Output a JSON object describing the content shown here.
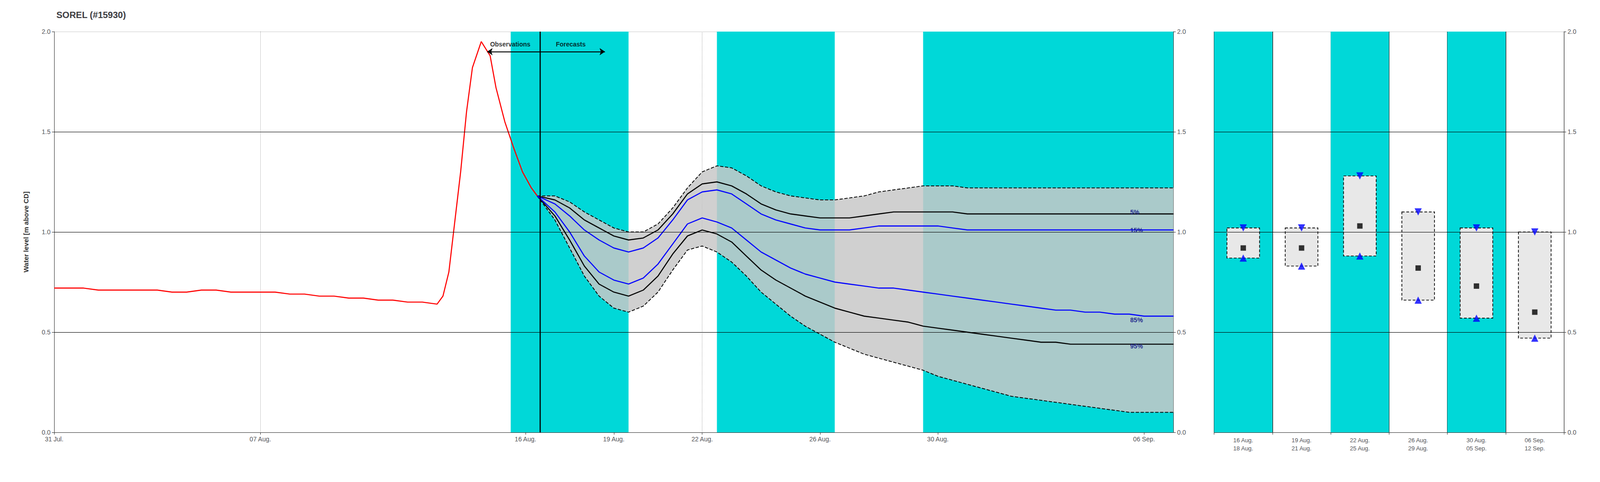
{
  "chart_data": [
    {
      "type": "line",
      "title": "SOREL (#15930)",
      "y_label": "Water level [m above CD]",
      "xlim": [
        0,
        38
      ],
      "xticks": [
        {
          "value": 0,
          "label": "31 Jul."
        },
        {
          "value": 7,
          "label": "07 Aug."
        },
        {
          "value": 16,
          "label": "16 Aug."
        },
        {
          "value": 19,
          "label": "19 Aug."
        },
        {
          "value": 22,
          "label": "22 Aug."
        },
        {
          "value": 26,
          "label": "26 Aug."
        },
        {
          "value": 30,
          "label": "30 Aug."
        },
        {
          "value": 37,
          "label": "06 Sep."
        }
      ],
      "ylim": [
        0.0,
        2.0
      ],
      "yticks": [
        {
          "value": 0,
          "label": "0.0"
        },
        0.5,
        {
          "value": 1,
          "label": "1.0"
        },
        1.5,
        {
          "value": 2,
          "label": "2.0"
        }
      ],
      "y2lim": [
        0.0,
        2.0
      ],
      "y2ticks": [
        {
          "value": 0,
          "label": "0.0"
        },
        0.5,
        {
          "value": 1,
          "label": "1.0"
        },
        1.5,
        {
          "value": 2,
          "label": "2.0"
        }
      ],
      "grid": true,
      "bands": {
        "color": "#00d8d8",
        "ranges": [
          [
            15.5,
            19.5
          ],
          [
            22.5,
            26.5
          ],
          [
            29.5,
            38.0
          ]
        ]
      },
      "hlines": [
        0.5,
        1.0,
        1.5
      ],
      "vlines": [
        16.5
      ],
      "arrows": [
        {
          "x": [
            14.7,
            18.7
          ],
          "y": [
            1.9,
            1.9
          ]
        }
      ],
      "annotations": [
        {
          "text": "5%",
          "x": 36.5,
          "y": 1.1,
          "color": "navy"
        },
        {
          "text": "15%",
          "x": 36.5,
          "y": 1.01,
          "color": "navy"
        },
        {
          "text": "85%",
          "x": 36.5,
          "y": 0.56,
          "color": "navy"
        },
        {
          "text": "95%",
          "x": 36.5,
          "y": 0.43,
          "color": "navy"
        },
        {
          "text": "Observations",
          "x": 16.2,
          "y": 1.9,
          "color": "black"
        },
        {
          "text": "Forecasts",
          "x": 17.0,
          "y": 1.9,
          "color": "black"
        }
      ],
      "series": [
        {
          "type": "band",
          "color": "#c8c8c8",
          "x": [
            16.4,
            17,
            17.5,
            18,
            18.5,
            19,
            19.5,
            20,
            20.5,
            21,
            21.5,
            22,
            22.5,
            23,
            23.5,
            24,
            24.5,
            25,
            25.5,
            26,
            26.5,
            27,
            27.5,
            28,
            28.5,
            29,
            29.5,
            30,
            30.5,
            31,
            31.5,
            32,
            32.5,
            33,
            33.5,
            34,
            34.5,
            35,
            35.5,
            36,
            36.5,
            37,
            37.5,
            38
          ],
          "lower": [
            1.18,
            1.06,
            0.92,
            0.78,
            0.68,
            0.62,
            0.6,
            0.63,
            0.7,
            0.81,
            0.91,
            0.93,
            0.9,
            0.85,
            0.78,
            0.7,
            0.64,
            0.58,
            0.53,
            0.49,
            0.45,
            0.42,
            0.39,
            0.37,
            0.35,
            0.33,
            0.31,
            0.28,
            0.26,
            0.24,
            0.22,
            0.2,
            0.18,
            0.17,
            0.16,
            0.15,
            0.14,
            0.13,
            0.12,
            0.11,
            0.1,
            0.1,
            0.1,
            0.1
          ],
          "upper": [
            1.18,
            1.18,
            1.15,
            1.1,
            1.06,
            1.02,
            1.0,
            1.0,
            1.04,
            1.12,
            1.22,
            1.3,
            1.33,
            1.32,
            1.28,
            1.23,
            1.2,
            1.18,
            1.17,
            1.16,
            1.16,
            1.17,
            1.18,
            1.2,
            1.21,
            1.22,
            1.23,
            1.23,
            1.23,
            1.22,
            1.22,
            1.22,
            1.22,
            1.22,
            1.22,
            1.22,
            1.22,
            1.22,
            1.22,
            1.22,
            1.22,
            1.22,
            1.22,
            1.22
          ]
        },
        {
          "type": "line",
          "color": "black",
          "line_style": "dashed",
          "x": [
            16.4,
            17,
            17.5,
            18,
            18.5,
            19,
            19.5,
            20,
            20.5,
            21,
            21.5,
            22,
            22.5,
            23,
            23.5,
            24,
            24.5,
            25,
            25.5,
            26,
            26.5,
            27,
            27.5,
            28,
            28.5,
            29,
            29.5,
            30,
            30.5,
            31,
            31.5,
            32,
            32.5,
            33,
            33.5,
            34,
            34.5,
            35,
            35.5,
            36,
            36.5,
            37,
            37.5,
            38
          ],
          "values": [
            1.18,
            1.18,
            1.15,
            1.1,
            1.06,
            1.02,
            1.0,
            1.0,
            1.04,
            1.12,
            1.22,
            1.3,
            1.33,
            1.32,
            1.28,
            1.23,
            1.2,
            1.18,
            1.17,
            1.16,
            1.16,
            1.17,
            1.18,
            1.2,
            1.21,
            1.22,
            1.23,
            1.23,
            1.23,
            1.22,
            1.22,
            1.22,
            1.22,
            1.22,
            1.22,
            1.22,
            1.22,
            1.22,
            1.22,
            1.22,
            1.22,
            1.22,
            1.22,
            1.22
          ]
        },
        {
          "type": "line",
          "color": "black",
          "line_style": "dashed",
          "x": [
            16.4,
            17,
            17.5,
            18,
            18.5,
            19,
            19.5,
            20,
            20.5,
            21,
            21.5,
            22,
            22.5,
            23,
            23.5,
            24,
            24.5,
            25,
            25.5,
            26,
            26.5,
            27,
            27.5,
            28,
            28.5,
            29,
            29.5,
            30,
            30.5,
            31,
            31.5,
            32,
            32.5,
            33,
            33.5,
            34,
            34.5,
            35,
            35.5,
            36,
            36.5,
            37,
            37.5,
            38
          ],
          "values": [
            1.18,
            1.06,
            0.92,
            0.78,
            0.68,
            0.62,
            0.6,
            0.63,
            0.7,
            0.81,
            0.91,
            0.93,
            0.9,
            0.85,
            0.78,
            0.7,
            0.64,
            0.58,
            0.53,
            0.49,
            0.45,
            0.42,
            0.39,
            0.37,
            0.35,
            0.33,
            0.31,
            0.28,
            0.26,
            0.24,
            0.22,
            0.2,
            0.18,
            0.17,
            0.16,
            0.15,
            0.14,
            0.13,
            0.12,
            0.11,
            0.1,
            0.1,
            0.1,
            0.1
          ]
        },
        {
          "type": "line",
          "color": "black",
          "line_style": "solid",
          "x": [
            16.4,
            17,
            17.5,
            18,
            18.5,
            19,
            19.5,
            20,
            20.5,
            21,
            21.5,
            22,
            22.5,
            23,
            23.5,
            24,
            24.5,
            25,
            25.5,
            26,
            26.5,
            27,
            27.5,
            28,
            28.5,
            29,
            29.5,
            30,
            30.5,
            31,
            31.5,
            32,
            32.5,
            33,
            33.5,
            34,
            34.5,
            35,
            35.5,
            36,
            36.5,
            37,
            37.5,
            38
          ],
          "values": [
            1.18,
            1.16,
            1.12,
            1.06,
            1.02,
            0.98,
            0.96,
            0.97,
            1.01,
            1.09,
            1.19,
            1.24,
            1.25,
            1.23,
            1.19,
            1.14,
            1.11,
            1.09,
            1.08,
            1.07,
            1.07,
            1.07,
            1.08,
            1.09,
            1.1,
            1.1,
            1.1,
            1.1,
            1.1,
            1.09,
            1.09,
            1.09,
            1.09,
            1.09,
            1.09,
            1.09,
            1.09,
            1.09,
            1.09,
            1.09,
            1.09,
            1.09,
            1.09,
            1.09
          ]
        },
        {
          "type": "line",
          "color": "black",
          "line_style": "solid",
          "x": [
            16.4,
            17,
            17.5,
            18,
            18.5,
            19,
            19.5,
            20,
            20.5,
            21,
            21.5,
            22,
            22.5,
            23,
            23.5,
            24,
            24.5,
            25,
            25.5,
            26,
            26.5,
            27,
            27.5,
            28,
            28.5,
            29,
            29.5,
            30,
            30.5,
            31,
            31.5,
            32,
            32.5,
            33,
            33.5,
            34,
            34.5,
            35,
            35.5,
            36,
            36.5,
            37,
            37.5,
            38
          ],
          "values": [
            1.18,
            1.08,
            0.96,
            0.83,
            0.74,
            0.7,
            0.68,
            0.71,
            0.78,
            0.89,
            0.98,
            1.01,
            0.99,
            0.95,
            0.88,
            0.81,
            0.76,
            0.72,
            0.68,
            0.65,
            0.62,
            0.6,
            0.58,
            0.57,
            0.56,
            0.55,
            0.53,
            0.52,
            0.51,
            0.5,
            0.49,
            0.48,
            0.47,
            0.46,
            0.45,
            0.45,
            0.44,
            0.44,
            0.44,
            0.44,
            0.44,
            0.44,
            0.44,
            0.44
          ]
        },
        {
          "type": "line",
          "color": "blue",
          "line_style": "solid",
          "x": [
            16.4,
            17,
            17.5,
            18,
            18.5,
            19,
            19.5,
            20,
            20.5,
            21,
            21.5,
            22,
            22.5,
            23,
            23.5,
            24,
            24.5,
            25,
            25.5,
            26,
            26.5,
            27,
            27.5,
            28,
            28.5,
            29,
            29.5,
            30,
            30.5,
            31,
            31.5,
            32,
            32.5,
            33,
            33.5,
            34,
            34.5,
            35,
            35.5,
            36,
            36.5,
            37,
            37.5,
            38
          ],
          "values": [
            1.18,
            1.14,
            1.08,
            1.01,
            0.96,
            0.92,
            0.9,
            0.92,
            0.97,
            1.06,
            1.16,
            1.2,
            1.21,
            1.19,
            1.14,
            1.09,
            1.06,
            1.04,
            1.02,
            1.01,
            1.01,
            1.01,
            1.02,
            1.03,
            1.03,
            1.03,
            1.03,
            1.03,
            1.02,
            1.01,
            1.01,
            1.01,
            1.01,
            1.01,
            1.01,
            1.01,
            1.01,
            1.01,
            1.01,
            1.01,
            1.01,
            1.01,
            1.01,
            1.01
          ]
        },
        {
          "type": "line",
          "color": "blue",
          "line_style": "solid",
          "x": [
            16.4,
            17,
            17.5,
            18,
            18.5,
            19,
            19.5,
            20,
            20.5,
            21,
            21.5,
            22,
            22.5,
            23,
            23.5,
            24,
            24.5,
            25,
            25.5,
            26,
            26.5,
            27,
            27.5,
            28,
            28.5,
            29,
            29.5,
            30,
            30.5,
            31,
            31.5,
            32,
            32.5,
            33,
            33.5,
            34,
            34.5,
            35,
            35.5,
            36,
            36.5,
            37,
            37.5,
            38
          ],
          "values": [
            1.18,
            1.1,
            1.0,
            0.88,
            0.8,
            0.76,
            0.74,
            0.77,
            0.84,
            0.94,
            1.04,
            1.07,
            1.05,
            1.02,
            0.96,
            0.9,
            0.86,
            0.82,
            0.79,
            0.77,
            0.75,
            0.74,
            0.73,
            0.72,
            0.72,
            0.71,
            0.7,
            0.69,
            0.68,
            0.67,
            0.66,
            0.65,
            0.64,
            0.63,
            0.62,
            0.61,
            0.61,
            0.6,
            0.6,
            0.59,
            0.59,
            0.58,
            0.58,
            0.58
          ]
        },
        {
          "type": "line",
          "color": "red",
          "line_style": "solid",
          "x": [
            0,
            0.5,
            1,
            1.5,
            2,
            2.5,
            3,
            3.5,
            4,
            4.5,
            5,
            5.5,
            6,
            6.5,
            7,
            7.5,
            8,
            8.5,
            9,
            9.5,
            10,
            10.5,
            11,
            11.5,
            12,
            12.5,
            13,
            13.2,
            13.4,
            13.6,
            13.8,
            14.0,
            14.2,
            14.5,
            14.8,
            15.0,
            15.3,
            15.6,
            15.9,
            16.2,
            16.4
          ],
          "values": [
            0.72,
            0.72,
            0.72,
            0.71,
            0.71,
            0.71,
            0.71,
            0.71,
            0.7,
            0.7,
            0.71,
            0.71,
            0.7,
            0.7,
            0.7,
            0.7,
            0.69,
            0.69,
            0.68,
            0.68,
            0.67,
            0.67,
            0.66,
            0.66,
            0.65,
            0.65,
            0.64,
            0.68,
            0.8,
            1.05,
            1.3,
            1.6,
            1.82,
            1.95,
            1.88,
            1.72,
            1.55,
            1.42,
            1.3,
            1.22,
            1.18
          ]
        }
      ]
    },
    {
      "type": "box",
      "categories": [
        "16 Aug.\n18 Aug.",
        "19 Aug.\n21 Aug.",
        "22 Aug.\n25 Aug.",
        "26 Aug.\n29 Aug.",
        "30 Aug.\n05 Sep.",
        "06 Sep.\n12 Sep."
      ],
      "y2lim": [
        0.0,
        2.0
      ],
      "y2ticks": [
        {
          "value": 0,
          "label": "0.0"
        },
        0.5,
        {
          "value": 1,
          "label": "1.0"
        },
        1.5,
        {
          "value": 2,
          "label": "2.0"
        }
      ],
      "grid": true,
      "bands": {
        "color": "#00d8d8",
        "flags": [
          1,
          0,
          1,
          0,
          1,
          0
        ]
      },
      "hlines": [
        0.5,
        1.0,
        1.5
      ],
      "series": [
        {
          "type": "box",
          "color": "#e8e8e8",
          "line_style": "dashed",
          "axis": "y2",
          "low": [
            0.87,
            0.83,
            0.88,
            0.66,
            0.57,
            0.47
          ],
          "high": [
            1.02,
            1.02,
            1.28,
            1.1,
            1.02,
            1.0
          ]
        },
        {
          "type": "scatter",
          "marker": "triangle_down",
          "color": "blue",
          "axis": "y2",
          "values": [
            1.02,
            1.02,
            1.28,
            1.1,
            1.02,
            1.0
          ]
        },
        {
          "type": "scatter",
          "marker": "triangle_up",
          "color": "blue",
          "axis": "y2",
          "values": [
            0.87,
            0.83,
            0.88,
            0.66,
            0.57,
            0.47
          ]
        },
        {
          "type": "scatter",
          "marker": "square",
          "color": "black",
          "axis": "y2",
          "values": [
            0.92,
            0.92,
            1.03,
            0.82,
            0.73,
            0.6
          ]
        }
      ]
    }
  ]
}
